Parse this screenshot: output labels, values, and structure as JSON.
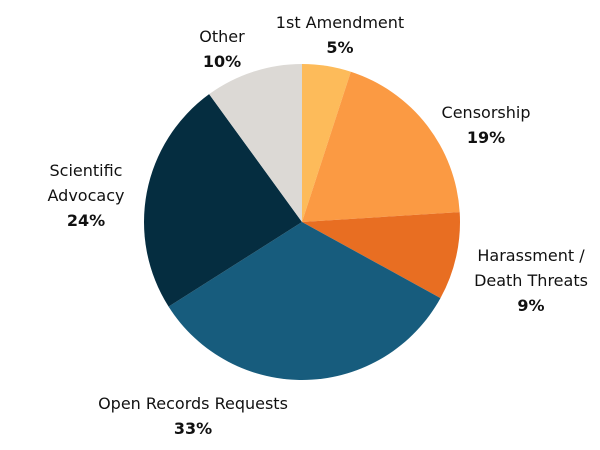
{
  "chart_data": {
    "type": "pie",
    "categories": [
      "1st Amendment",
      "Censorship",
      "Harassment / Death Threats",
      "Open Records Requests",
      "Scientific Advocacy",
      "Other"
    ],
    "values": [
      5,
      19,
      9,
      33,
      24,
      10
    ],
    "value_labels": [
      "5%",
      "19%",
      "9%",
      "33%",
      "24%",
      "10%"
    ],
    "colors": [
      "#fdbb5a",
      "#fb9a43",
      "#e86e22",
      "#175c7d",
      "#052d40",
      "#dcd9d5"
    ]
  }
}
